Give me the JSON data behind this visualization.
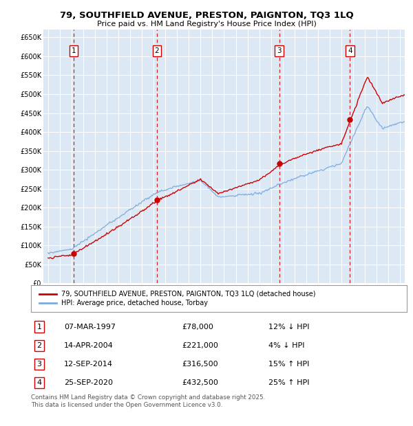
{
  "title": "79, SOUTHFIELD AVENUE, PRESTON, PAIGNTON, TQ3 1LQ",
  "subtitle": "Price paid vs. HM Land Registry's House Price Index (HPI)",
  "ylim": [
    0,
    670000
  ],
  "yticks": [
    0,
    50000,
    100000,
    150000,
    200000,
    250000,
    300000,
    350000,
    400000,
    450000,
    500000,
    550000,
    600000,
    650000
  ],
  "xlim_start": 1994.6,
  "xlim_end": 2025.4,
  "bg_color": "#dce9f5",
  "grid_color": "#ffffff",
  "sale_dates_year": [
    1997.18,
    2004.28,
    2014.7,
    2020.73
  ],
  "sale_prices": [
    78000,
    221000,
    316500,
    432500
  ],
  "sale_labels": [
    "1",
    "2",
    "3",
    "4"
  ],
  "sale_date_strs": [
    "07-MAR-1997",
    "14-APR-2004",
    "12-SEP-2014",
    "25-SEP-2020"
  ],
  "sale_pct": [
    "12% ↓ HPI",
    "4% ↓ HPI",
    "15% ↑ HPI",
    "25% ↑ HPI"
  ],
  "sale_price_strs": [
    "£78,000",
    "£221,000",
    "£316,500",
    "£432,500"
  ],
  "line_color_red": "#cc0000",
  "line_color_blue": "#7aaadd",
  "dot_color_red": "#cc0000",
  "legend_label_red": "79, SOUTHFIELD AVENUE, PRESTON, PAIGNTON, TQ3 1LQ (detached house)",
  "legend_label_blue": "HPI: Average price, detached house, Torbay",
  "footer": "Contains HM Land Registry data © Crown copyright and database right 2025.\nThis data is licensed under the Open Government Licence v3.0.",
  "vline_color": "#cc0000",
  "box_color_face": "#ffffff",
  "box_color_edge": "#cc0000"
}
